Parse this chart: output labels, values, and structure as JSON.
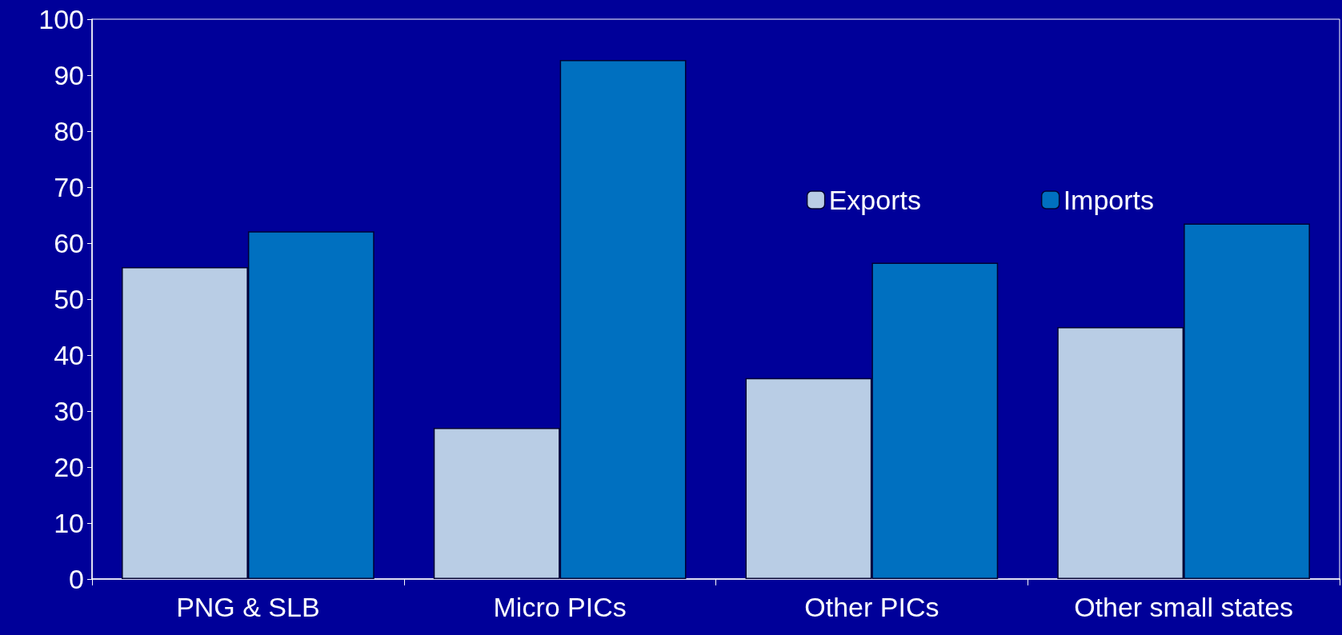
{
  "chart_data": {
    "type": "bar",
    "categories": [
      "PNG & SLB",
      "Micro PICs",
      "Other PICs",
      "Other small states"
    ],
    "series": [
      {
        "name": "Exports",
        "color": "#b9cde5",
        "values": [
          55.7,
          27.0,
          35.9,
          45.0
        ]
      },
      {
        "name": "Imports",
        "color": "#0070c0",
        "values": [
          62.1,
          92.7,
          56.5,
          63.5
        ]
      }
    ],
    "ylim": [
      0,
      100
    ],
    "yticks": [
      0,
      10,
      20,
      30,
      40,
      50,
      60,
      70,
      80,
      90,
      100
    ],
    "grid": false,
    "legend": "top right"
  }
}
